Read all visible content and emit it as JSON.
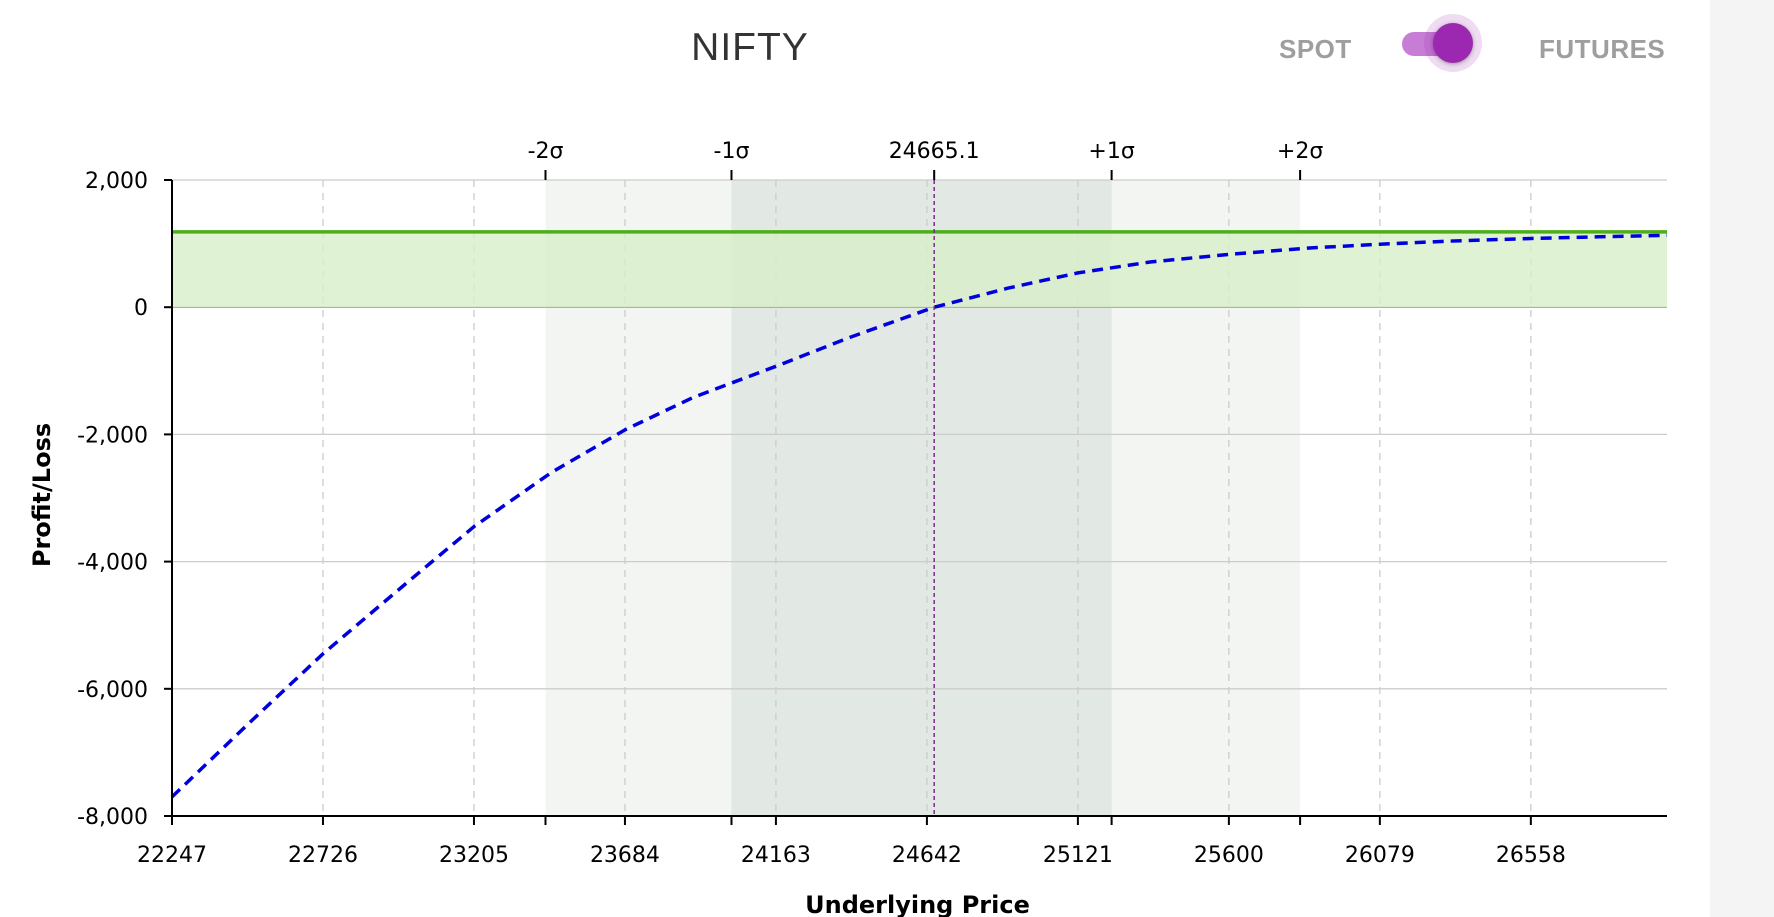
{
  "header": {
    "title": "NIFTY",
    "toggle": {
      "left_label": "SPOT",
      "right_label": "FUTURES",
      "state": "FUTURES",
      "color": "#9c27b0"
    }
  },
  "chart_data": {
    "type": "line",
    "xlabel": "Underlying Price",
    "ylabel": "Profit/Loss",
    "xlim": [
      22247,
      26990
    ],
    "ylim": [
      -8000,
      2000
    ],
    "x_ticks": [
      22247,
      22726,
      23205,
      23684,
      24163,
      24642,
      25121,
      25600,
      26079,
      26558
    ],
    "y_ticks": [
      "2,000",
      "0",
      "-2,000",
      "-4,000",
      "-6,000",
      "-8,000"
    ],
    "y_tick_values": [
      2000,
      0,
      -2000,
      -4000,
      -6000,
      -8000
    ],
    "grid": true,
    "current_price": {
      "label": "24665.1",
      "value": 24665.1
    },
    "sigma_bands": [
      {
        "label": "-2σ",
        "value": 23432
      },
      {
        "label": "-1σ",
        "value": 24022
      },
      {
        "label": "+1σ",
        "value": 25228
      },
      {
        "label": "+2σ",
        "value": 25826
      }
    ],
    "series": [
      {
        "style": "solid",
        "color": "#4caf1a",
        "fill": "#d8efc9",
        "x": [
          22247,
          26990
        ],
        "y": [
          1185,
          1185
        ]
      },
      {
        "style": "dashed",
        "color": "#0000dd",
        "x": [
          22247,
          22500,
          22726,
          23000,
          23205,
          23450,
          23684,
          23900,
          24163,
          24400,
          24665,
          24900,
          25121,
          25350,
          25600,
          25850,
          26079,
          26300,
          26558,
          26800,
          26990
        ],
        "y": [
          -7700,
          -6500,
          -5450,
          -4300,
          -3450,
          -2600,
          -1930,
          -1420,
          -930,
          -470,
          0,
          300,
          540,
          710,
          830,
          930,
          990,
          1040,
          1080,
          1110,
          1130
        ]
      }
    ],
    "colors": {
      "sigma1_band": "#e2e8e4",
      "sigma2_band": "#f3f5f3",
      "grid": "#cccccc",
      "current_price_line": "#7b2d8b"
    }
  }
}
